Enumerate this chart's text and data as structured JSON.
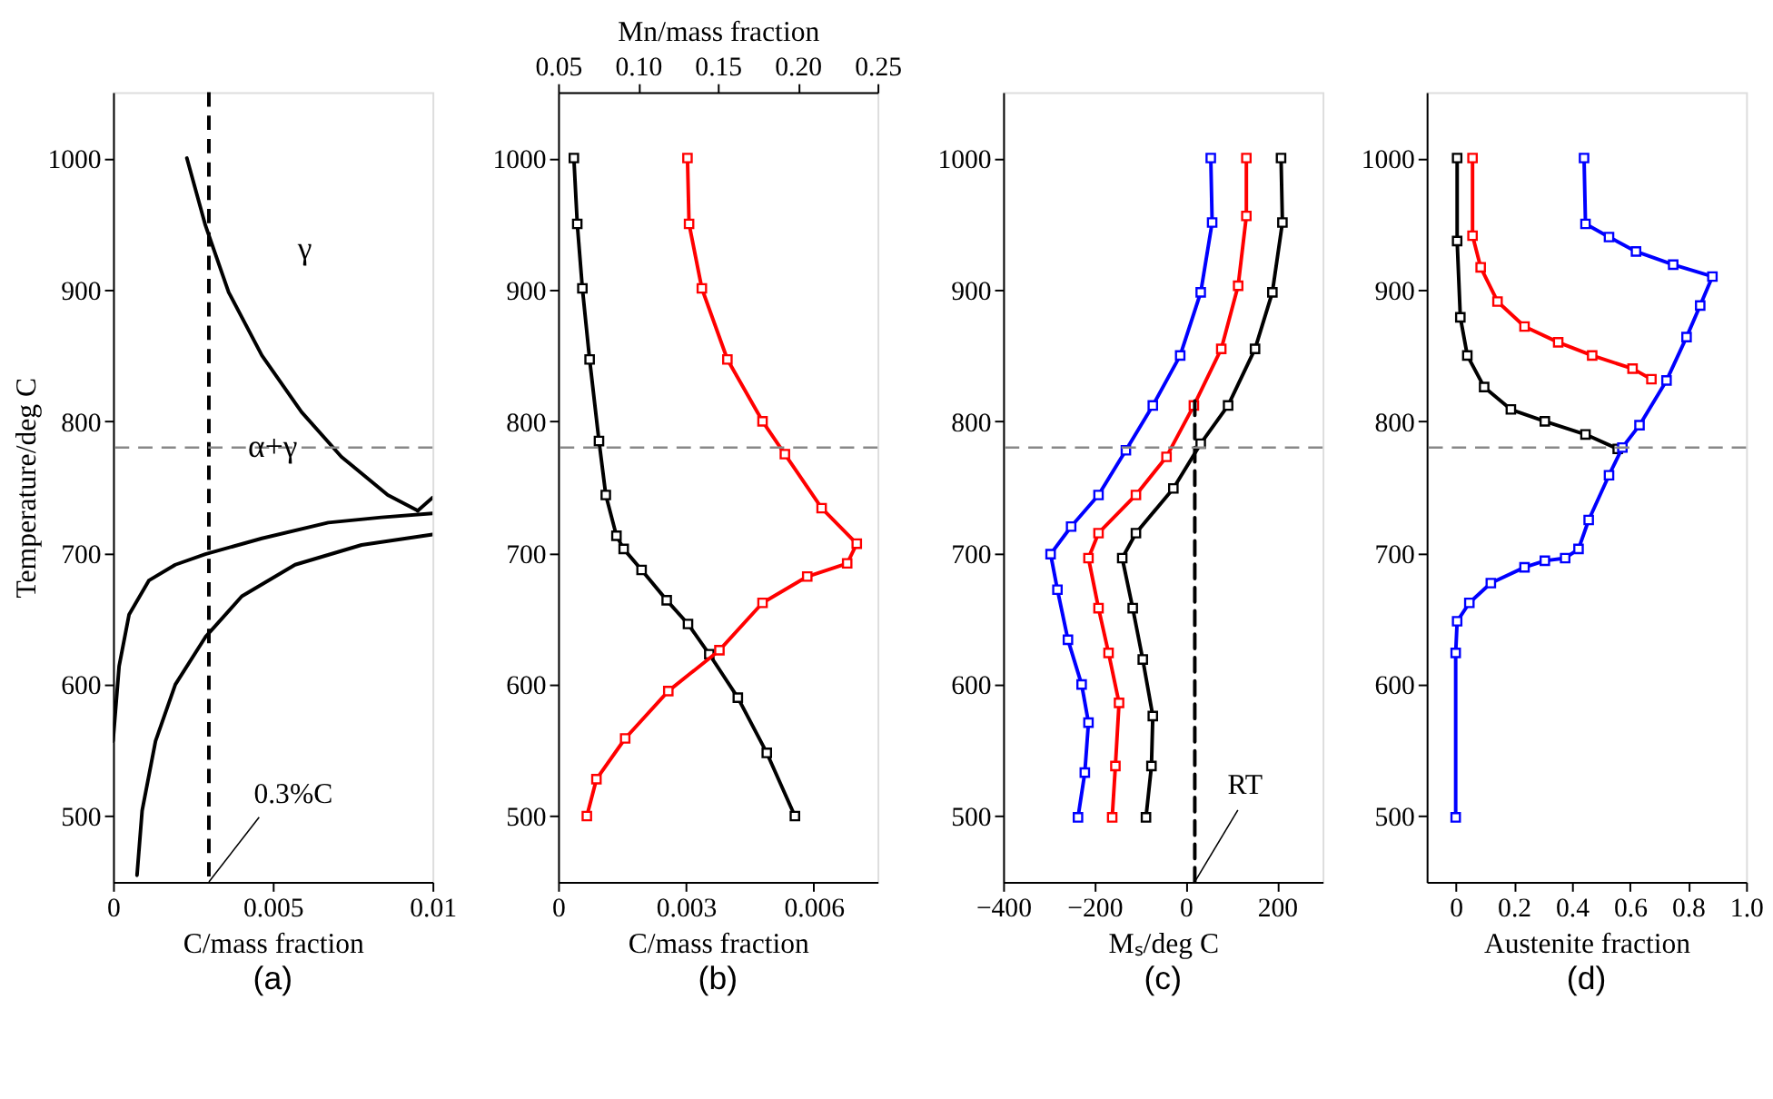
{
  "chart_data": [
    {
      "type": "line",
      "title": "(a)",
      "xlabel": "C/mass fraction",
      "ylabel": "Temperature/deg C",
      "marker": "none",
      "xlim": [
        0,
        0.01
      ],
      "xticks": [
        0,
        0.005,
        0.01
      ],
      "ylim": [
        450,
        1050
      ],
      "yticks": [
        500,
        600,
        700,
        800,
        900,
        1000
      ],
      "series": [
        {
          "color": "#000000",
          "x": [
            0.00231,
            0.00289,
            0.00362,
            0.00466,
            0.0059,
            0.00715,
            0.0086,
            0.00954
          ],
          "values": [
            1000,
            949,
            898,
            850,
            807,
            773,
            744,
            732
          ]
        },
        {
          "color": "#000000",
          "x": [
            0.00954,
            0.01
          ],
          "values": [
            732,
            742
          ]
        },
        {
          "color": "#000000",
          "x": [
            0,
            0.00019,
            0.0005,
            0.00112,
            0.00195,
            0.00289,
            0.00466,
            0.00674,
            0.0084,
            0.01
          ],
          "values": [
            557,
            614,
            653,
            679,
            691,
            699,
            711,
            723,
            727,
            730
          ]
        },
        {
          "color": "#000000",
          "x": [
            0.00075,
            0.00091,
            0.00133,
            0.00195,
            0.00289,
            0.00403,
            0.0057,
            0.00778,
            0.01
          ],
          "values": [
            455,
            504,
            557,
            600,
            636,
            667,
            691,
            706,
            714
          ]
        }
      ],
      "ref_lines": [
        {
          "axis": "x",
          "value": 0.003,
          "label": "0.3%C",
          "color": "#000000",
          "line_style": "dashed"
        },
        {
          "axis": "y",
          "value": 780,
          "color": "#888888",
          "line_style": "dashed"
        }
      ],
      "annotations": [
        "γ",
        "α+γ"
      ]
    },
    {
      "type": "line",
      "title": "(b)",
      "xlabel": "C/mass fraction",
      "x2label": "Mn/mass fraction",
      "marker": "square",
      "xlim": [
        0,
        0.0075
      ],
      "xticks": [
        0,
        0.003,
        0.006
      ],
      "x2lim": [
        0.05,
        0.25
      ],
      "x2ticks": [
        0.05,
        {
          "value": 0.1,
          "label": "0.10"
        },
        0.15,
        {
          "value": 0.2,
          "label": "0.20"
        },
        0.25
      ],
      "ylim": [
        450,
        1050
      ],
      "yticks": [
        500,
        600,
        700,
        800,
        900,
        1000
      ],
      "series": [
        {
          "color": "#000000",
          "x": [
            0.00037,
            0.00045,
            0.00057,
            0.00074,
            0.00096,
            0.00112,
            0.00137,
            0.00154,
            0.00196,
            0.00255,
            0.00305,
            0.00355,
            0.00422,
            0.0049,
            0.00556
          ],
          "values": [
            1000,
            950,
            901,
            847,
            785,
            744,
            713,
            703,
            687,
            664,
            646,
            623,
            590,
            548,
            500
          ]
        },
        {
          "color": "#ff0000",
          "axis": "x2",
          "x": [
            0.131,
            0.132,
            0.14,
            0.156,
            0.178,
            0.192,
            0.215,
            0.237,
            0.231,
            0.206,
            0.178,
            0.151,
            0.119,
            0.092,
            0.074,
            0.068
          ],
          "values": [
            1000,
            950,
            901,
            847,
            800,
            775,
            734,
            707,
            692,
            682,
            662,
            626,
            595,
            559,
            528,
            500
          ]
        }
      ],
      "ref_lines": [
        {
          "axis": "y",
          "value": 780,
          "color": "#888888",
          "line_style": "dashed"
        }
      ]
    },
    {
      "type": "line",
      "title": "(c)",
      "xlabel": "Mₛ/deg C",
      "marker": "square",
      "xlim": [
        -400,
        300
      ],
      "xticks": [
        -400,
        -200,
        0,
        200
      ],
      "ylim": [
        450,
        1050
      ],
      "yticks": [
        500,
        600,
        700,
        800,
        900,
        1000
      ],
      "series": [
        {
          "color": "#0000ff",
          "x": [
            55,
            58,
            33,
            -12,
            -72,
            -131,
            -191,
            -251,
            -296,
            -281,
            -258,
            -228,
            -213,
            -221,
            -236
          ],
          "values": [
            1000,
            951,
            898,
            850,
            812,
            778,
            744,
            720,
            699,
            672,
            634,
            600,
            571,
            533,
            499
          ]
        },
        {
          "color": "#ff0000",
          "x": [
            133,
            133,
            115,
            78,
            18,
            -42,
            -109,
            -191,
            -213,
            -191,
            -169,
            -146,
            -154,
            -161
          ],
          "values": [
            1000,
            956,
            903,
            855,
            812,
            773,
            744,
            715,
            696,
            658,
            624,
            586,
            538,
            499
          ]
        },
        {
          "color": "#000000",
          "x": [
            209,
            212,
            190,
            152,
            93,
            33,
            -27,
            -109,
            -139,
            -116,
            -94,
            -72,
            -75,
            -87
          ],
          "values": [
            1000,
            951,
            898,
            855,
            812,
            783,
            749,
            715,
            696,
            658,
            619,
            576,
            538,
            499
          ]
        },
        {
          "color": "#000000",
          "marker": "none",
          "line_style": "dashed",
          "x": [
            20,
            20
          ],
          "values": [
            450,
            817
          ]
        }
      ],
      "ref_lines": [
        {
          "axis": "y",
          "value": 780,
          "color": "#888888",
          "line_style": "dashed"
        }
      ],
      "annotations": [
        {
          "text": "RT",
          "x": 20,
          "y": 450
        }
      ]
    },
    {
      "type": "line",
      "title": "(d)",
      "xlabel": "Austenite fraction",
      "marker": "square",
      "xlim": [
        -0.1,
        1.0
      ],
      "xticks": [
        0,
        0.2,
        0.4,
        0.6,
        0.8,
        {
          "value": 1,
          "label": "1.0"
        }
      ],
      "ylim": [
        450,
        1050
      ],
      "yticks": [
        500,
        600,
        700,
        800,
        900,
        1000
      ],
      "series": [
        {
          "color": "#000000",
          "x": [
            0.005,
            0.005,
            0.016,
            0.04,
            0.098,
            0.19,
            0.307,
            0.447,
            0.558
          ],
          "values": [
            1000,
            937,
            879,
            850,
            826,
            809,
            800,
            790,
            779
          ]
        },
        {
          "color": "#ff0000",
          "x": [
            0.058,
            0.058,
            0.086,
            0.144,
            0.237,
            0.353,
            0.47,
            0.609,
            0.674
          ],
          "values": [
            1000,
            941,
            917,
            891,
            872,
            860,
            850,
            840,
            832
          ]
        },
        {
          "color": "#0000ff",
          "x": [
            0.442,
            0.447,
            0.528,
            0.621,
            0.749,
            0.884,
            0.842,
            0.795,
            0.726,
            0.633,
            0.574,
            0.528,
            0.458,
            0.423,
            0.377,
            0.307,
            0.237,
            0.121,
            0.047,
            0.005,
            0,
            0
          ],
          "values": [
            1000,
            950,
            940,
            929,
            919,
            910,
            888,
            864,
            831,
            797,
            780,
            759,
            725,
            703,
            696,
            694,
            689,
            677,
            662,
            648,
            624,
            499
          ]
        }
      ],
      "ref_lines": [
        {
          "axis": "y",
          "value": 780,
          "color": "#888888",
          "line_style": "dashed"
        }
      ]
    }
  ]
}
